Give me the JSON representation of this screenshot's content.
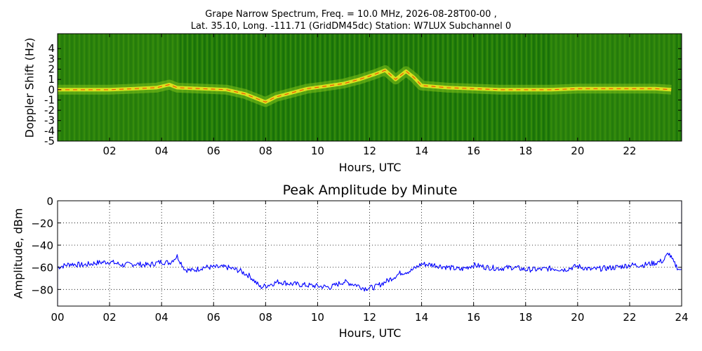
{
  "title_line1": "Grape Narrow Spectrum, Freq. = 10.0 MHz, 2026-08-28T00-00 ,",
  "title_line2": "Lat.  35.10, Long. -111.71 (GridDM45dc) Station: W7LUX Subchannel 0",
  "chart_data": [
    {
      "type": "heatmap",
      "title": "",
      "xlabel": "Hours, UTC",
      "ylabel": "Doppler Shift (Hz)",
      "xlim": [
        0,
        24
      ],
      "ylim": [
        -5,
        5
      ],
      "x_ticks": [
        "02",
        "04",
        "06",
        "08",
        "10",
        "12",
        "14",
        "16",
        "18",
        "20",
        "22"
      ],
      "y_ticks": [
        "4",
        "3",
        "2",
        "1",
        "0",
        "-1",
        "-2",
        "-3",
        "-4",
        "-5"
      ],
      "colors": {
        "background": "#1f7a0a",
        "mid": "#7fc21a",
        "high": "#e8e820",
        "peak": "#ff3000"
      },
      "doppler_trace": {
        "x": [
          0,
          1,
          2,
          3,
          3.8,
          4.3,
          4.6,
          5.5,
          6.5,
          7.2,
          7.7,
          8.0,
          8.4,
          9,
          9.6,
          10.2,
          11,
          11.6,
          12.2,
          12.6,
          13,
          13.4,
          13.7,
          14,
          15,
          16,
          17,
          18,
          19,
          20,
          21,
          22,
          23,
          23.6
        ],
        "y": [
          0,
          0,
          0,
          0.1,
          0.2,
          0.5,
          0.2,
          0.1,
          0,
          -0.4,
          -0.9,
          -1.2,
          -0.7,
          -0.3,
          0.1,
          0.3,
          0.6,
          1.0,
          1.5,
          1.9,
          1.0,
          1.8,
          1.2,
          0.4,
          0.2,
          0.1,
          0,
          0,
          0,
          0.1,
          0.1,
          0.1,
          0.1,
          0
        ]
      },
      "grid": false
    },
    {
      "type": "line",
      "title": "Peak Amplitude by Minute",
      "xlabel": "Hours, UTC",
      "ylabel": "Amplitude, dBm",
      "xlim": [
        0,
        24
      ],
      "ylim": [
        -95,
        0
      ],
      "x_ticks": [
        "00",
        "02",
        "04",
        "06",
        "08",
        "10",
        "12",
        "14",
        "16",
        "18",
        "20",
        "22",
        "24"
      ],
      "y_ticks": [
        0,
        -20,
        -40,
        -60,
        -80
      ],
      "y_tick_labels": [
        "0",
        "−20",
        "−40",
        "−60",
        "−80"
      ],
      "grid": true,
      "series_color": "#0000ff",
      "x": [
        0,
        0.5,
        1,
        1.5,
        2,
        2.5,
        3,
        3.5,
        4,
        4.3,
        4.6,
        4.9,
        5.2,
        5.6,
        6,
        6.5,
        7,
        7.4,
        7.8,
        8.1,
        8.5,
        9,
        9.5,
        10,
        10.5,
        11,
        11.5,
        11.8,
        12.2,
        12.7,
        13.2,
        13.6,
        14,
        14.5,
        15,
        15.5,
        16,
        16.5,
        17,
        17.5,
        18,
        18.5,
        19,
        19.5,
        20,
        20.5,
        21,
        21.5,
        22,
        22.5,
        23,
        23.3,
        23.5,
        23.7,
        23.9
      ],
      "y": [
        -60,
        -57,
        -58,
        -56,
        -55,
        -58,
        -57,
        -58,
        -55,
        -56,
        -50,
        -62,
        -63,
        -60,
        -60,
        -60,
        -63,
        -68,
        -78,
        -76,
        -73,
        -75,
        -76,
        -77,
        -78,
        -73,
        -76,
        -79,
        -78,
        -72,
        -65,
        -63,
        -57,
        -58,
        -60,
        -62,
        -58,
        -60,
        -61,
        -60,
        -62,
        -62,
        -61,
        -62,
        -59,
        -62,
        -61,
        -60,
        -58,
        -58,
        -56,
        -54,
        -47,
        -56,
        -62
      ]
    }
  ]
}
